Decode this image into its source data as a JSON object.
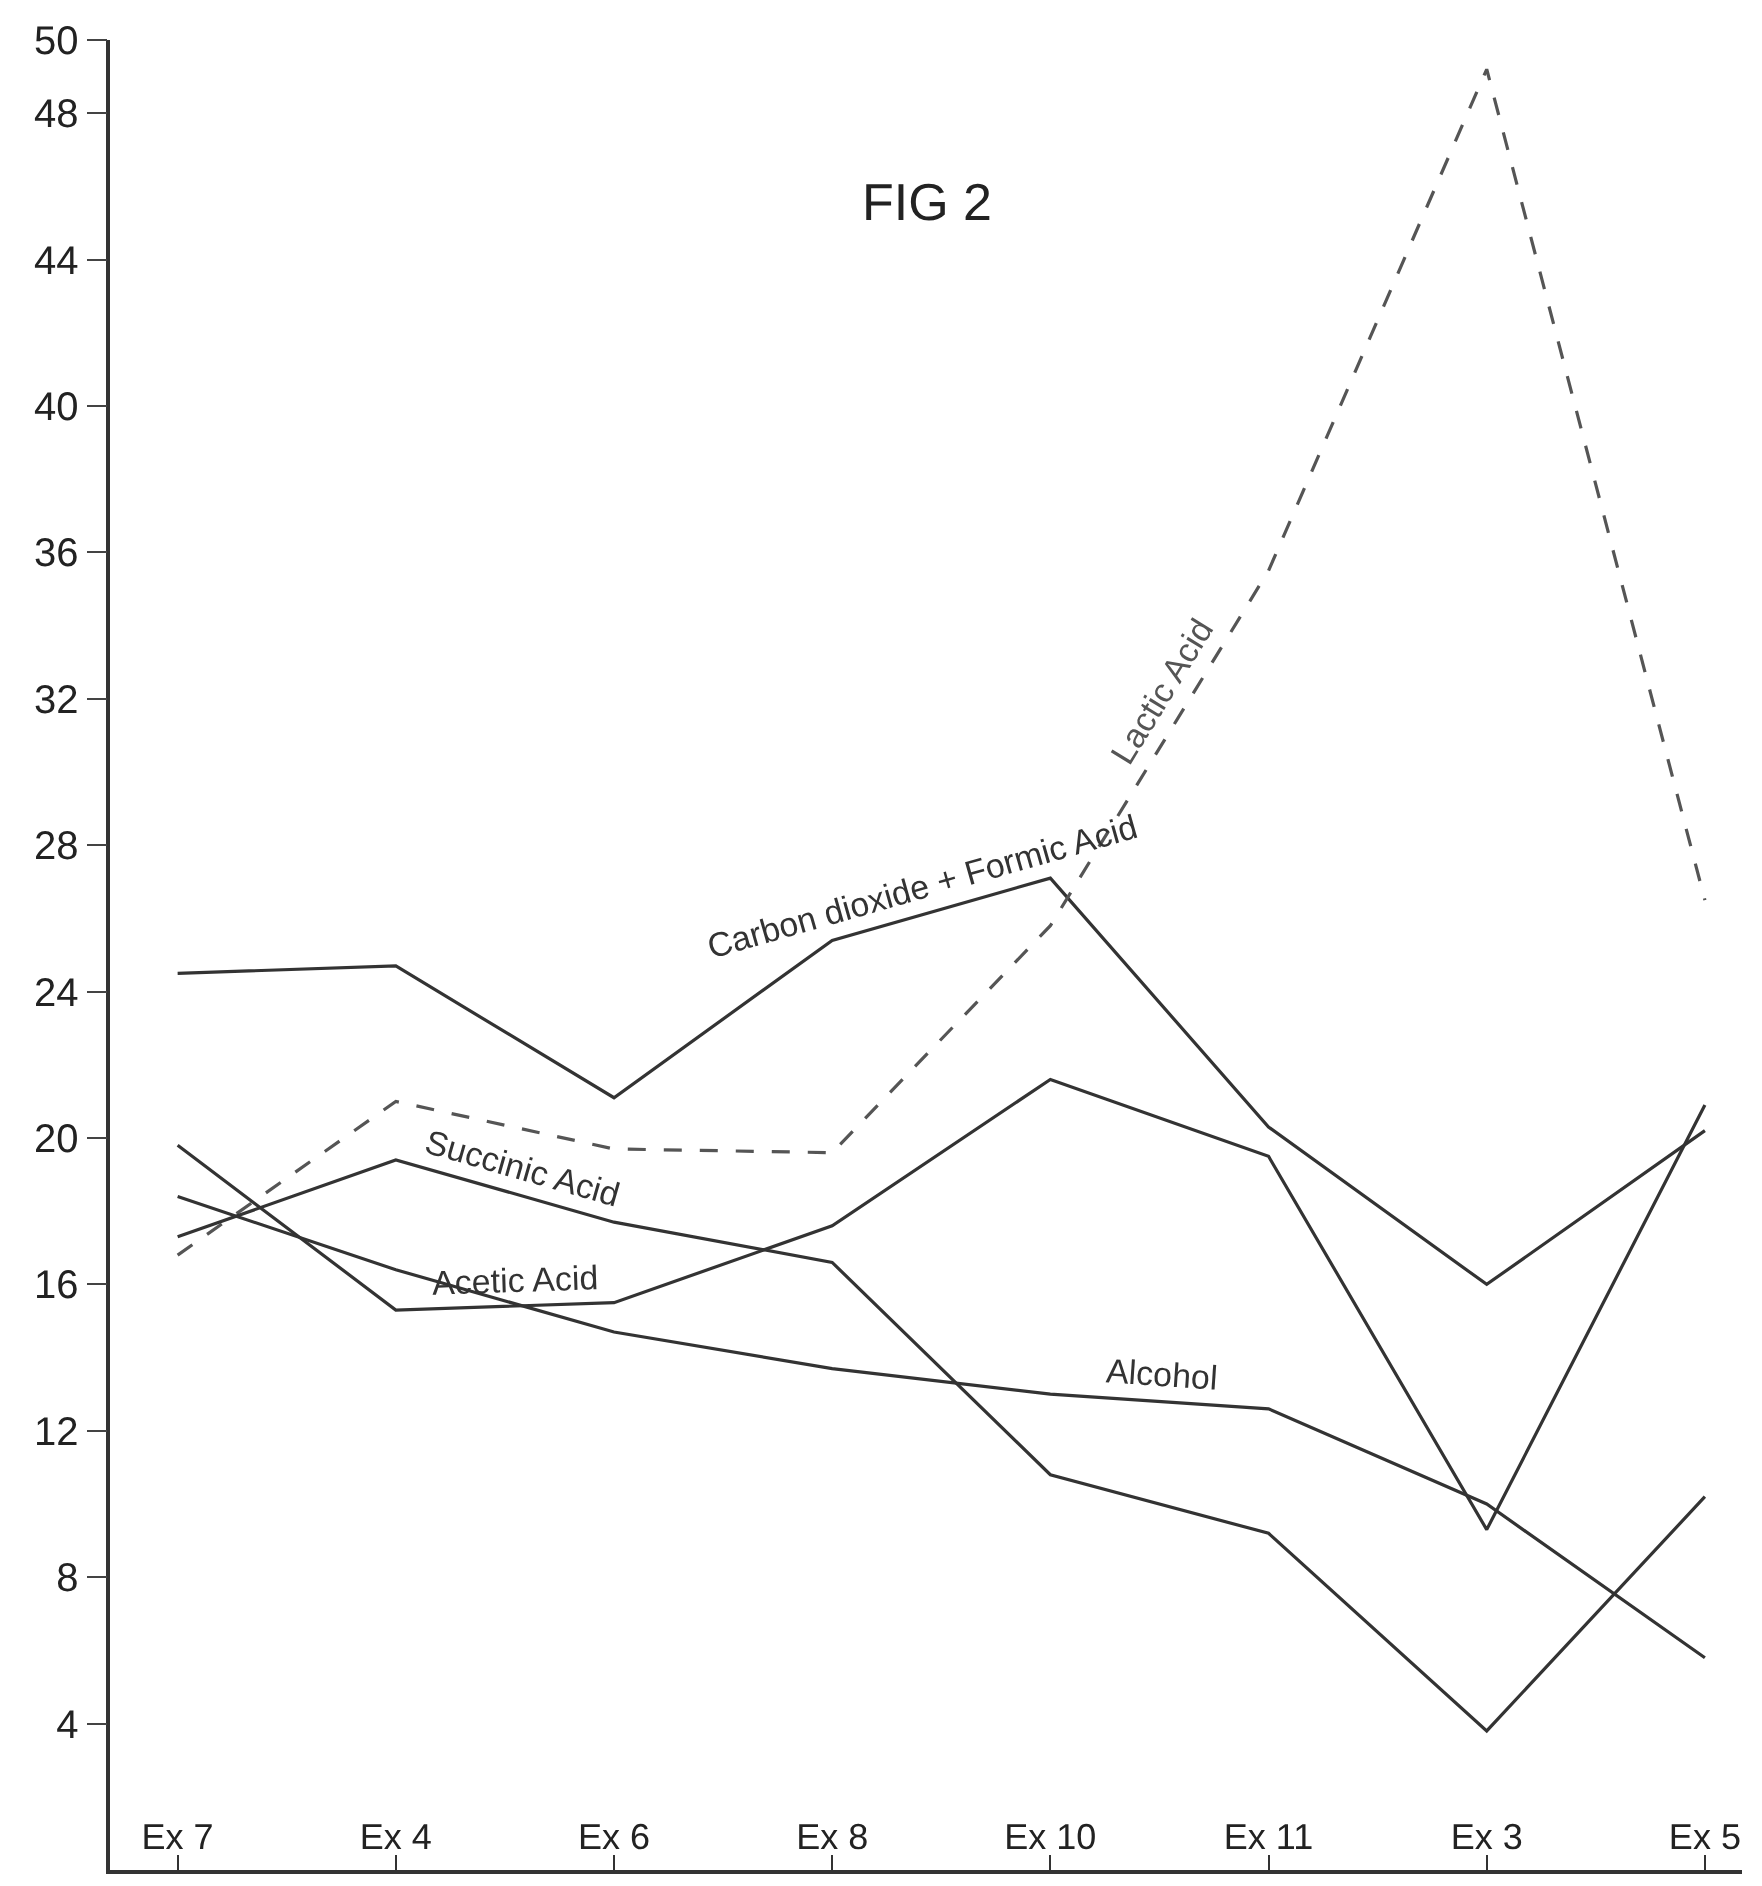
{
  "chart_data": {
    "type": "line",
    "title": "FIG 2",
    "categories": [
      "Ex 7",
      "Ex 4",
      "Ex 6",
      "Ex 8",
      "Ex 10",
      "Ex 11",
      "Ex 3",
      "Ex 5"
    ],
    "series": [
      {
        "name": "Carbon dioxide + Formic Acid",
        "color": "#333333",
        "line_style": "solid",
        "values": [
          24.5,
          24.7,
          21.1,
          25.4,
          27.1,
          20.3,
          16.0,
          20.2
        ]
      },
      {
        "name": "Lactic Acid",
        "color": "#555555",
        "line_style": "dashed",
        "values": [
          16.8,
          21.0,
          19.7,
          19.6,
          25.8,
          35.5,
          49.2,
          26.5
        ]
      },
      {
        "name": "Succinic Acid",
        "color": "#333333",
        "line_style": "solid",
        "values": [
          17.3,
          19.4,
          17.7,
          16.6,
          10.8,
          9.2,
          3.8,
          10.2
        ]
      },
      {
        "name": "Acetic Acid",
        "color": "#333333",
        "line_style": "solid",
        "values": [
          19.8,
          15.3,
          15.5,
          17.6,
          21.6,
          19.5,
          9.3,
          20.9
        ]
      },
      {
        "name": "Alcohol",
        "color": "#333333",
        "line_style": "solid",
        "values": [
          18.4,
          16.4,
          14.7,
          13.7,
          13.0,
          12.6,
          10.0,
          5.8
        ]
      }
    ],
    "ylim": [
      0,
      50
    ],
    "yticks": [
      4,
      8,
      12,
      16,
      20,
      24,
      28,
      32,
      36,
      40,
      44,
      48,
      50
    ],
    "legend": false,
    "marker": "none"
  }
}
